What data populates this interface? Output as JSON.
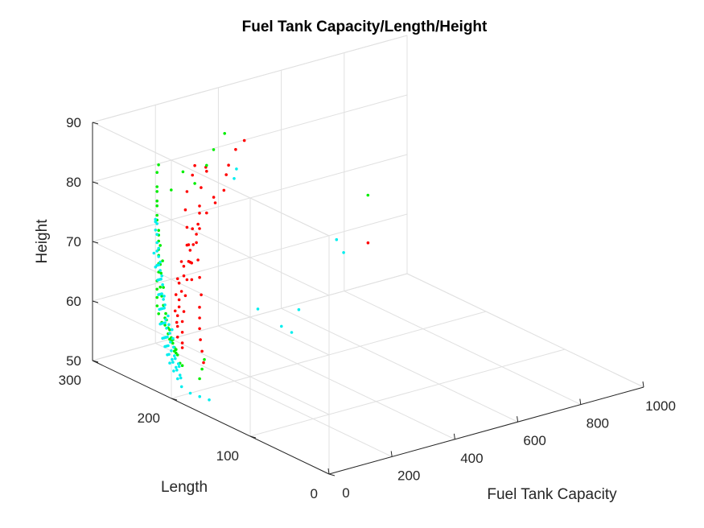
{
  "chart_data": {
    "type": "scatter",
    "title": "Fuel Tank Capacity/Length/Height",
    "xlabel": "Fuel Tank Capacity",
    "ylabel": "Length",
    "zlabel": "Height",
    "xlim": [
      0,
      1000
    ],
    "ylim": [
      0,
      300
    ],
    "zlim": [
      50,
      90
    ],
    "xticks": [
      "0",
      "200",
      "400",
      "600",
      "800",
      "1000"
    ],
    "yticks": [
      "0",
      "100",
      "200",
      "300"
    ],
    "zticks": [
      "50",
      "60",
      "70",
      "80",
      "90"
    ],
    "grid": true,
    "series": [
      {
        "color": "#ff0000",
        "points": [
          [
            140,
            230,
            66
          ],
          [
            160,
            240,
            68
          ],
          [
            180,
            250,
            70
          ],
          [
            200,
            260,
            72
          ],
          [
            220,
            270,
            74
          ],
          [
            250,
            280,
            76
          ],
          [
            280,
            285,
            78
          ],
          [
            300,
            290,
            79
          ],
          [
            170,
            230,
            63
          ],
          [
            190,
            240,
            65
          ],
          [
            210,
            250,
            67
          ],
          [
            230,
            260,
            69
          ],
          [
            260,
            270,
            71
          ],
          [
            290,
            280,
            73
          ],
          [
            320,
            290,
            75
          ],
          [
            350,
            295,
            77
          ],
          [
            150,
            250,
            60
          ],
          [
            170,
            255,
            62
          ],
          [
            190,
            260,
            64
          ],
          [
            210,
            262,
            66
          ],
          [
            240,
            268,
            68
          ],
          [
            270,
            272,
            70
          ],
          [
            300,
            275,
            72
          ],
          [
            330,
            278,
            74
          ],
          [
            130,
            245,
            58
          ],
          [
            150,
            255,
            59
          ],
          [
            170,
            262,
            61
          ],
          [
            190,
            268,
            63
          ],
          [
            220,
            275,
            65
          ],
          [
            250,
            280,
            67
          ],
          [
            280,
            285,
            69
          ],
          [
            310,
            288,
            71
          ],
          [
            120,
            240,
            56
          ],
          [
            140,
            248,
            57
          ],
          [
            160,
            256,
            58
          ],
          [
            180,
            262,
            60
          ],
          [
            200,
            270,
            62
          ],
          [
            230,
            276,
            64
          ],
          [
            260,
            280,
            66
          ],
          [
            290,
            284,
            68
          ],
          [
            110,
            230,
            55
          ],
          [
            130,
            238,
            55
          ],
          [
            150,
            246,
            56
          ],
          [
            170,
            254,
            57
          ],
          [
            190,
            260,
            58
          ],
          [
            210,
            266,
            60
          ],
          [
            230,
            272,
            62
          ],
          [
            260,
            278,
            64
          ],
          [
            400,
            290,
            76
          ],
          [
            420,
            295,
            77
          ],
          [
            450,
            298,
            79
          ],
          [
            380,
            285,
            74
          ],
          [
            360,
            288,
            72
          ],
          [
            340,
            292,
            78
          ],
          [
            480,
            299,
            80
          ],
          [
            600,
            190,
            68
          ],
          [
            140,
            215,
            53
          ],
          [
            160,
            225,
            54
          ],
          [
            180,
            235,
            55
          ],
          [
            200,
            244,
            56
          ],
          [
            220,
            252,
            57
          ],
          [
            240,
            260,
            58
          ]
        ]
      },
      {
        "color": "#00ee00",
        "points": [
          [
            110,
            255,
            68
          ],
          [
            120,
            262,
            70
          ],
          [
            130,
            268,
            72
          ],
          [
            140,
            274,
            74
          ],
          [
            150,
            278,
            76
          ],
          [
            160,
            282,
            78
          ],
          [
            170,
            286,
            80
          ],
          [
            180,
            288,
            81
          ],
          [
            100,
            250,
            64
          ],
          [
            105,
            255,
            66
          ],
          [
            115,
            260,
            67
          ],
          [
            125,
            266,
            69
          ],
          [
            135,
            270,
            71
          ],
          [
            145,
            276,
            73
          ],
          [
            155,
            280,
            75
          ],
          [
            165,
            284,
            77
          ],
          [
            95,
            245,
            60
          ],
          [
            100,
            250,
            61
          ],
          [
            110,
            256,
            62
          ],
          [
            120,
            262,
            63
          ],
          [
            130,
            268,
            65
          ],
          [
            140,
            272,
            66
          ],
          [
            150,
            276,
            67
          ],
          [
            160,
            280,
            69
          ],
          [
            90,
            240,
            57
          ],
          [
            95,
            246,
            58
          ],
          [
            100,
            252,
            58
          ],
          [
            105,
            258,
            59
          ],
          [
            110,
            262,
            60
          ],
          [
            120,
            266,
            61
          ],
          [
            130,
            270,
            62
          ],
          [
            140,
            274,
            63
          ],
          [
            90,
            230,
            55
          ],
          [
            95,
            234,
            55
          ],
          [
            100,
            238,
            56
          ],
          [
            105,
            242,
            56
          ],
          [
            110,
            246,
            57
          ],
          [
            115,
            250,
            57
          ],
          [
            120,
            254,
            58
          ],
          [
            125,
            258,
            58
          ],
          [
            85,
            220,
            53
          ],
          [
            90,
            225,
            53
          ],
          [
            95,
            230,
            54
          ],
          [
            100,
            234,
            54
          ],
          [
            105,
            238,
            54
          ],
          [
            110,
            242,
            55
          ],
          [
            115,
            246,
            55
          ],
          [
            120,
            250,
            55
          ],
          [
            350,
            295,
            78
          ],
          [
            380,
            298,
            80
          ],
          [
            420,
            300,
            82
          ],
          [
            300,
            290,
            76
          ],
          [
            250,
            285,
            79
          ],
          [
            200,
            280,
            77
          ],
          [
            700,
            230,
            72
          ],
          [
            180,
            230,
            52
          ],
          [
            160,
            225,
            51
          ],
          [
            140,
            220,
            50
          ]
        ]
      },
      {
        "color": "#00eeee",
        "points": [
          [
            90,
            250,
            58
          ],
          [
            100,
            255,
            60
          ],
          [
            110,
            260,
            62
          ],
          [
            120,
            265,
            64
          ],
          [
            130,
            270,
            66
          ],
          [
            140,
            274,
            68
          ],
          [
            150,
            278,
            69
          ],
          [
            160,
            282,
            70
          ],
          [
            85,
            245,
            56
          ],
          [
            95,
            250,
            58
          ],
          [
            105,
            255,
            60
          ],
          [
            115,
            260,
            62
          ],
          [
            125,
            265,
            64
          ],
          [
            135,
            270,
            66
          ],
          [
            145,
            274,
            67
          ],
          [
            155,
            278,
            68
          ],
          [
            80,
            240,
            55
          ],
          [
            90,
            245,
            56
          ],
          [
            100,
            250,
            58
          ],
          [
            110,
            255,
            60
          ],
          [
            120,
            260,
            62
          ],
          [
            130,
            265,
            64
          ],
          [
            140,
            270,
            65
          ],
          [
            150,
            274,
            66
          ],
          [
            75,
            235,
            54
          ],
          [
            85,
            240,
            55
          ],
          [
            95,
            245,
            56
          ],
          [
            105,
            250,
            58
          ],
          [
            115,
            255,
            60
          ],
          [
            125,
            260,
            61
          ],
          [
            135,
            265,
            63
          ],
          [
            145,
            270,
            64
          ],
          [
            70,
            230,
            53
          ],
          [
            80,
            235,
            54
          ],
          [
            90,
            240,
            55
          ],
          [
            100,
            245,
            56
          ],
          [
            110,
            250,
            57
          ],
          [
            120,
            255,
            58
          ],
          [
            130,
            260,
            60
          ],
          [
            140,
            265,
            61
          ],
          [
            70,
            225,
            52
          ],
          [
            80,
            230,
            53
          ],
          [
            90,
            235,
            53
          ],
          [
            100,
            240,
            54
          ],
          [
            110,
            245,
            55
          ],
          [
            120,
            250,
            56
          ],
          [
            130,
            255,
            57
          ],
          [
            140,
            260,
            58
          ],
          [
            70,
            220,
            51
          ],
          [
            80,
            225,
            52
          ],
          [
            90,
            230,
            52
          ],
          [
            100,
            235,
            53
          ],
          [
            110,
            240,
            53
          ],
          [
            120,
            245,
            54
          ],
          [
            130,
            250,
            55
          ],
          [
            140,
            255,
            56
          ],
          [
            70,
            215,
            50
          ],
          [
            80,
            220,
            51
          ],
          [
            90,
            225,
            51
          ],
          [
            100,
            230,
            52
          ],
          [
            110,
            235,
            52
          ],
          [
            60,
            200,
            50
          ],
          [
            65,
            190,
            50
          ],
          [
            70,
            180,
            50
          ],
          [
            150,
            280,
            71
          ],
          [
            160,
            284,
            72
          ],
          [
            170,
            288,
            72
          ],
          [
            180,
            290,
            71
          ],
          [
            120,
            268,
            66
          ],
          [
            125,
            272,
            68
          ],
          [
            400,
            280,
            76
          ],
          [
            420,
            285,
            77
          ],
          [
            550,
            210,
            68
          ],
          [
            560,
            205,
            66
          ],
          [
            350,
            230,
            58
          ],
          [
            400,
            220,
            55
          ],
          [
            420,
            215,
            54
          ],
          [
            380,
            190,
            60
          ]
        ]
      }
    ]
  }
}
